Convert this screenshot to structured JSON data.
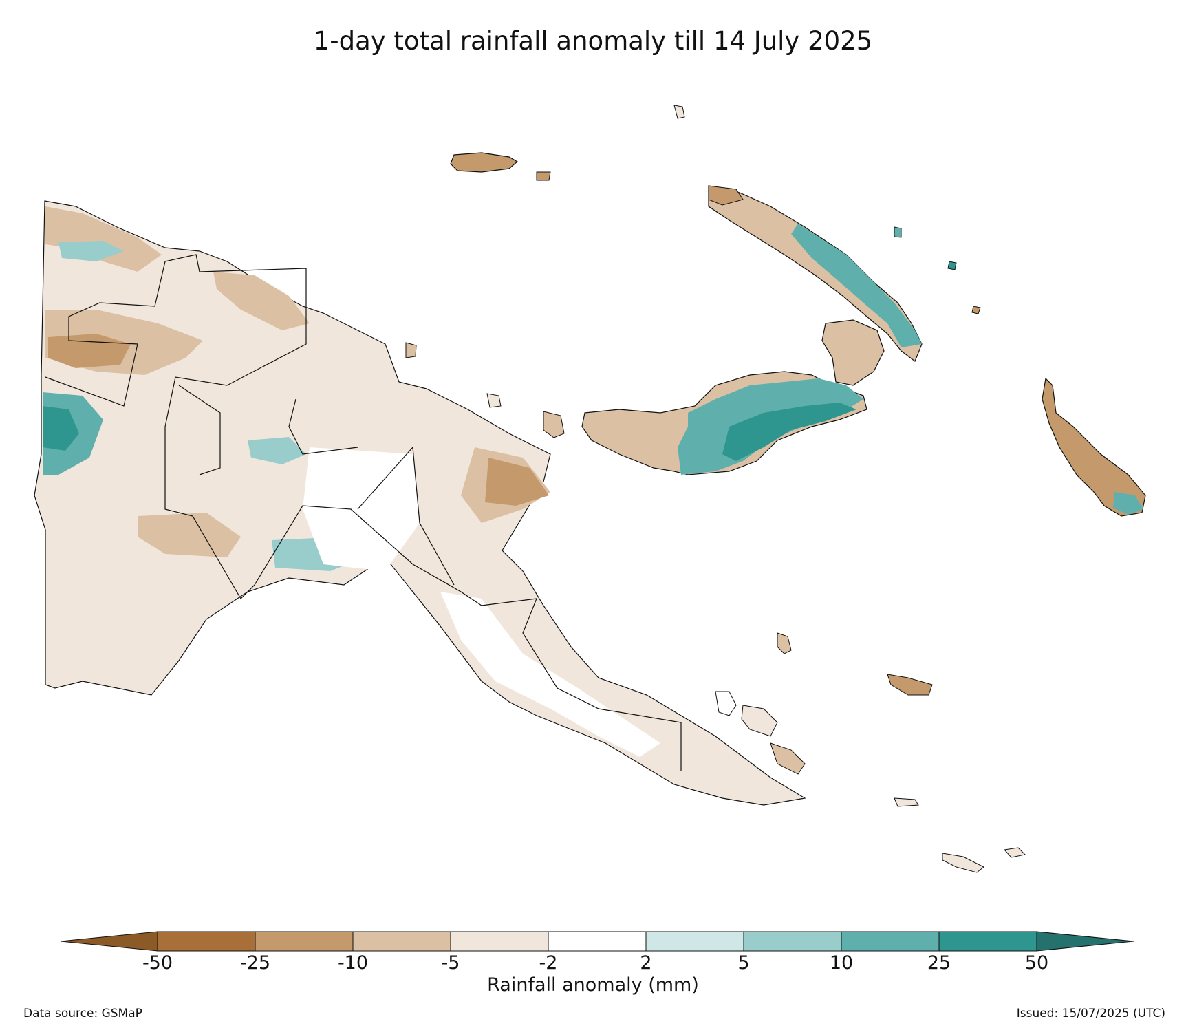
{
  "title": "1-day total rainfall anomaly till 14 July 2025",
  "colorbar": {
    "label": "Rainfall anomaly (mm)",
    "ticks": [
      "-50",
      "-25",
      "-10",
      "-5",
      "-2",
      "2",
      "5",
      "10",
      "25",
      "50"
    ],
    "colors": {
      "below_min": "#8c5a26",
      "bins": [
        "#a86f38",
        "#c49a6c",
        "#dbc0a4",
        "#f1e6dc",
        "#ffffff",
        "#cfe7e6",
        "#98cdcb",
        "#5fb0ad",
        "#2e958f"
      ],
      "above_max": "#24716d"
    }
  },
  "footer": {
    "source": "Data source: GSMaP",
    "issued": "Issued: 15/07/2025 (UTC)"
  }
}
